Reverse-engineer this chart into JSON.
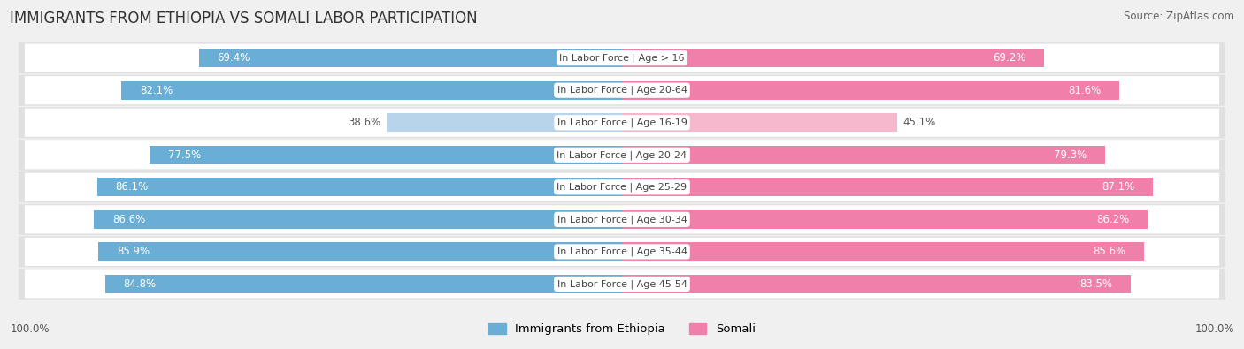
{
  "title": "IMMIGRANTS FROM ETHIOPIA VS SOMALI LABOR PARTICIPATION",
  "source": "Source: ZipAtlas.com",
  "categories": [
    "In Labor Force | Age > 16",
    "In Labor Force | Age 20-64",
    "In Labor Force | Age 16-19",
    "In Labor Force | Age 20-24",
    "In Labor Force | Age 25-29",
    "In Labor Force | Age 30-34",
    "In Labor Force | Age 35-44",
    "In Labor Force | Age 45-54"
  ],
  "ethiopia_values": [
    69.4,
    82.1,
    38.6,
    77.5,
    86.1,
    86.6,
    85.9,
    84.8
  ],
  "somali_values": [
    69.2,
    81.6,
    45.1,
    79.3,
    87.1,
    86.2,
    85.6,
    83.5
  ],
  "ethiopia_color": "#6aaed6",
  "ethiopia_light_color": "#b8d4ea",
  "somali_color": "#f07faa",
  "somali_light_color": "#f5b8cc",
  "bar_height": 0.58,
  "background_color": "#f0f0f0",
  "row_bg_color": "#ffffff",
  "row_outer_color": "#e0e0e0",
  "title_fontsize": 12,
  "source_fontsize": 8.5,
  "value_fontsize": 8.5,
  "category_fontsize": 8.0,
  "legend_fontsize": 9.5,
  "x_max": 100.0
}
